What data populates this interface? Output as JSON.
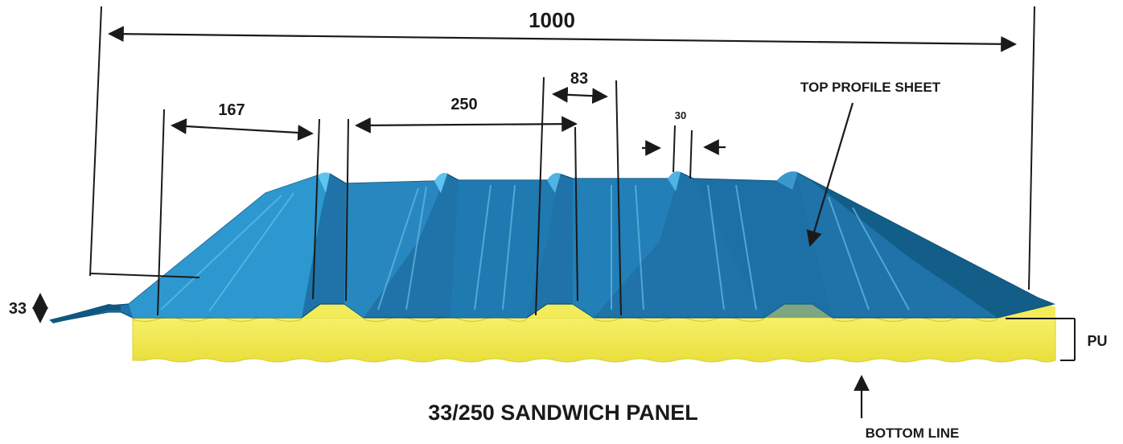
{
  "dimensions": {
    "total_width": "1000",
    "crest_to_crest": "167",
    "pitch": "250",
    "crest_top": "83",
    "crest_small": "30",
    "height": "33"
  },
  "labels": {
    "top_profile_sheet": "TOP PROFILE SHEET",
    "pu": "PU",
    "bottom_line": "BOTTOM LINE",
    "title": "33/250 SANDWICH PANEL"
  },
  "colors": {
    "sheet_blue": "#1f73a8",
    "sheet_light": "#2f9fd6",
    "sheet_dark": "#10577f",
    "foam_yellow": "#f3ec5a"
  }
}
